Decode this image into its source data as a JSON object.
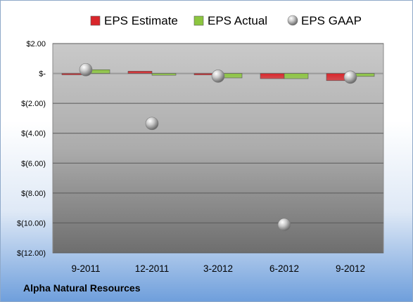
{
  "chart_data": {
    "type": "bar",
    "categories": [
      "9-2011",
      "12-2011",
      "3-2012",
      "6-2012",
      "9-2012"
    ],
    "series": [
      {
        "name": "EPS Estimate",
        "kind": "bar",
        "color": "#d9262b",
        "values": [
          0.0,
          0.15,
          -0.1,
          -0.35,
          -0.48
        ]
      },
      {
        "name": "EPS Actual",
        "kind": "bar",
        "color": "#8cc63f",
        "values": [
          0.25,
          -0.12,
          -0.3,
          -0.35,
          -0.2
        ]
      },
      {
        "name": "EPS GAAP",
        "kind": "scatter",
        "color": "#b0b0b0",
        "values": [
          0.25,
          -3.35,
          -0.18,
          -10.12,
          -0.25
        ]
      }
    ],
    "y_ticks": [
      {
        "value": 2,
        "label": "$2.00"
      },
      {
        "value": 0,
        "label": "$-"
      },
      {
        "value": -2,
        "label": "$(2.00)"
      },
      {
        "value": -4,
        "label": "$(4.00)"
      },
      {
        "value": -6,
        "label": "$(6.00)"
      },
      {
        "value": -8,
        "label": "$(8.00)"
      },
      {
        "value": -10,
        "label": "$(10.00)"
      },
      {
        "value": -12,
        "label": "$(12.00)"
      }
    ],
    "ylim": [
      -12,
      2
    ],
    "grid": true,
    "legend": "top"
  },
  "company": "Alpha Natural Resources"
}
